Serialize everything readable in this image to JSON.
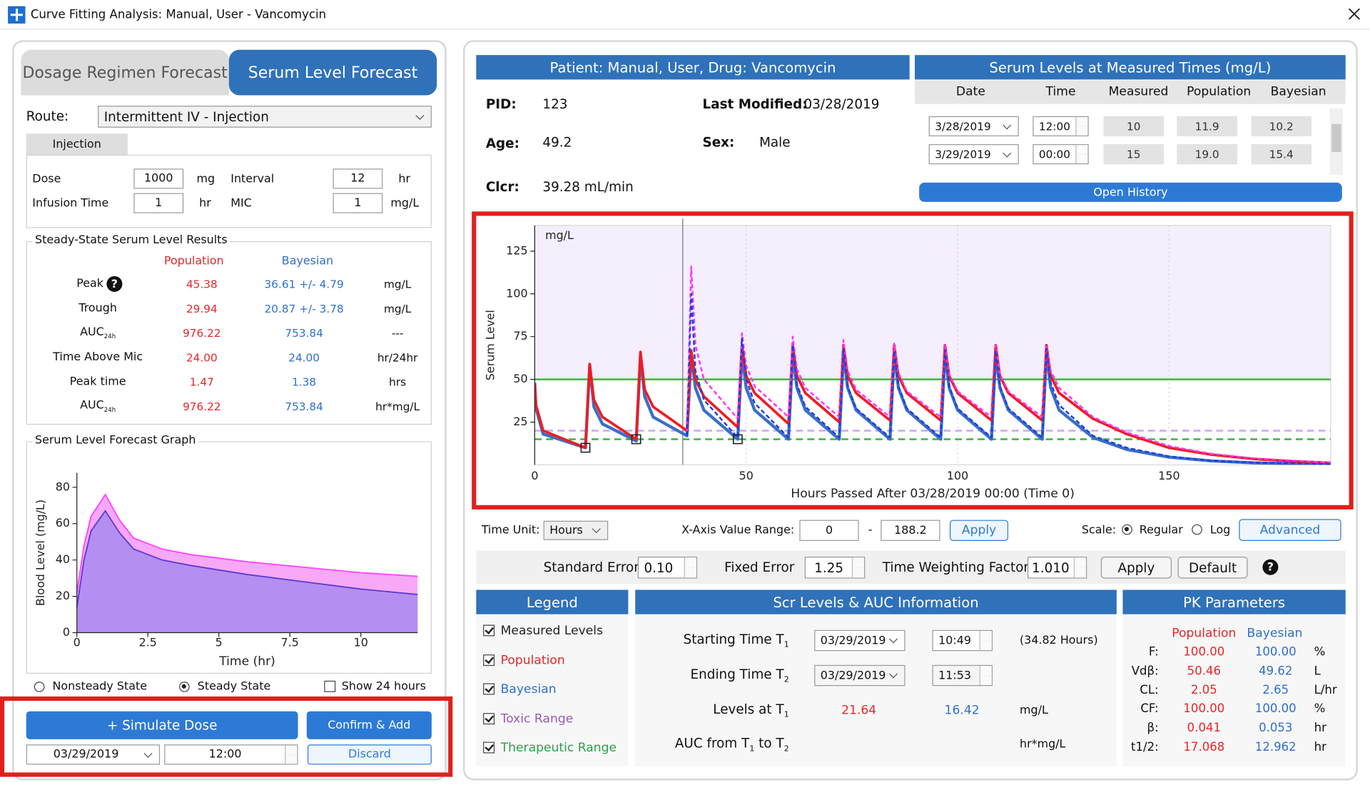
{
  "window": {
    "title": "Curve Fitting Analysis:  Manual, User - Vancomycin"
  },
  "help_icon": "?",
  "tabs": [
    "Dosage Regimen Forecast",
    "Serum Level Forecast"
  ],
  "route": {
    "label": "Route:",
    "value": "Intermittent IV - Injection"
  },
  "injection": {
    "tab": "Injection",
    "dose_label": "Dose",
    "dose": "1000",
    "dose_unit": "mg",
    "interval_label": "Interval",
    "interval": "12",
    "interval_unit": "hr",
    "infusion_label": "Infusion Time",
    "infusion": "1",
    "infusion_unit": "hr",
    "mic_label": "MIC",
    "mic": "1",
    "mic_unit": "mg/L"
  },
  "steady_state": {
    "title": "Steady-State Serum Level Results",
    "columns": [
      "Population",
      "Bayesian"
    ],
    "rows": [
      {
        "label": "Peak",
        "population": "45.38",
        "bayesian": "36.61 +/- 4.79",
        "unit": "mg/L"
      },
      {
        "label": "Trough",
        "population": "29.94",
        "bayesian": "20.87 +/- 3.78",
        "unit": "mg/L"
      },
      {
        "label": "AUC",
        "sub": "24h",
        "population": "976.22",
        "bayesian": "753.84",
        "unit": "---"
      },
      {
        "label": "Time Above Mic",
        "population": "24.00",
        "bayesian": "24.00",
        "unit": "hr/24hr"
      },
      {
        "label": "Peak time",
        "population": "1.47",
        "bayesian": "1.38",
        "unit": "hrs"
      },
      {
        "label": "AUC",
        "sub": "24h",
        "population": "976.22",
        "bayesian": "753.84",
        "unit": "hr*mg/L"
      }
    ]
  },
  "state_options": {
    "nonsteady": "Nonsteady State",
    "steady": "Steady State",
    "show24": "Show 24 hours",
    "selected": "steady",
    "show24_checked": false
  },
  "simulate": {
    "button": "+ Simulate Dose",
    "confirm": "Confirm & Add",
    "discard": "Discard",
    "date": "03/29/2019",
    "time": "12:00"
  },
  "patient": {
    "header": "Patient:  Manual, User, Drug: Vancomycin",
    "pid_label": "PID:",
    "pid": "123",
    "last_modified_label": "Last Modified:",
    "last_modified": "03/28/2019",
    "age_label": "Age:",
    "age": "49.2",
    "sex_label": "Sex:",
    "sex": "Male",
    "clcr_label": "Clcr:",
    "clcr": "39.28 mL/min"
  },
  "serum_levels": {
    "title": "Serum Levels at Measured Times (mg/L)",
    "columns": [
      "Date",
      "Time",
      "Measured",
      "Population",
      "Bayesian"
    ],
    "rows": [
      [
        "3/28/2019",
        "12:00",
        "10",
        "11.9",
        "10.2"
      ],
      [
        "3/29/2019",
        "00:00",
        "15",
        "19.0",
        "15.4"
      ]
    ],
    "button": "Open History"
  },
  "plot_controls": {
    "time_unit_label": "Time Unit:",
    "time_unit": "Hours",
    "range_label": "X-Axis Value Range:",
    "range_from": "0",
    "range_separator": "-",
    "range_to": "188.2",
    "apply": "Apply",
    "scale_label": "Scale:",
    "scale_options": [
      "Regular",
      "Log"
    ],
    "scale_selected": 0,
    "advanced": "Advanced"
  },
  "fit_settings": {
    "standard_error_label": "Standard Error",
    "standard_error": "0.10",
    "fixed_error_label": "Fixed Error",
    "fixed_error": "1.25",
    "twf_label": "Time Weighting Factor",
    "twf": "1.010",
    "apply": "Apply",
    "default": "Default"
  },
  "legend": {
    "title": "Legend",
    "items": [
      {
        "label": "Measured Levels",
        "color": "#222222",
        "checked": true
      },
      {
        "label": "Population",
        "color": "#e8262a",
        "checked": true
      },
      {
        "label": "Bayesian",
        "color": "#2f6fce",
        "checked": true
      },
      {
        "label": "Toxic Range",
        "color": "#9b59b6",
        "checked": true
      },
      {
        "label": "Therapeutic Range",
        "color": "#2e9e4a",
        "checked": true
      }
    ]
  },
  "scr_auc": {
    "title": "Scr Levels & AUC Information",
    "start_label": "Starting Time T",
    "start_sub": "1",
    "start_date": "03/29/2019",
    "start_time": "10:49",
    "start_hours": "(34.82 Hours)",
    "end_label": "Ending Time T",
    "end_sub": "2",
    "end_date": "03/29/2019",
    "end_time": "11:53",
    "levels_label": "Levels at T",
    "levels_sub": "1",
    "levels_population": "21.64",
    "levels_bayesian": "16.42",
    "levels_unit": "mg/L",
    "auc_label_parts": [
      "AUC from T",
      "1",
      " to T",
      "2"
    ],
    "auc_unit": "hr*mg/L"
  },
  "pk": {
    "title": "PK Parameters",
    "columns": [
      "Population",
      "Bayesian"
    ],
    "rows": [
      {
        "label": "F:",
        "population": "100.00",
        "bayesian": "100.00",
        "unit": "%"
      },
      {
        "label": "Vdβ:",
        "population": "50.46",
        "bayesian": "49.62",
        "unit": "L"
      },
      {
        "label": "CL:",
        "population": "2.05",
        "bayesian": "2.65",
        "unit": "L/hr"
      },
      {
        "label": "CF:",
        "population": "100.00",
        "bayesian": "100.00",
        "unit": "%"
      },
      {
        "label": "β:",
        "population": "0.041",
        "bayesian": "0.053",
        "unit": "hr"
      },
      {
        "label": "t1/2:",
        "population": "17.068",
        "bayesian": "12.962",
        "unit": "hr"
      }
    ]
  },
  "chart_data": [
    {
      "type": "area",
      "title": "Serum Level Forecast Graph",
      "x_label": "Time (hr)",
      "y_label": "Blood Level (mg/L)",
      "xlim": [
        0,
        12
      ],
      "ylim": [
        0,
        88
      ],
      "xticks": [
        0,
        2.5,
        5,
        7.5,
        10
      ],
      "yticks": [
        0,
        20,
        40,
        60,
        80
      ],
      "x": [
        0,
        0.25,
        0.5,
        1,
        1.5,
        2,
        3,
        4,
        6,
        8,
        10,
        12
      ],
      "series": [
        {
          "color": "#ff44ff",
          "fill": "#f7a8f7",
          "values": [
            22,
            48,
            64,
            76,
            62,
            52,
            46,
            43,
            39,
            36,
            33,
            31
          ]
        },
        {
          "color": "#5b3bd0",
          "fill": "#b58ef2",
          "values": [
            14,
            40,
            56,
            67,
            55,
            46,
            40,
            37,
            32,
            28,
            24,
            21
          ]
        }
      ]
    },
    {
      "type": "line",
      "x_label": "Hours Passed After 03/28/2019 00:00 (Time 0)",
      "y_label": "Serum Level",
      "unit_label": "mg/L",
      "xlim": [
        0,
        188.2
      ],
      "ylim": [
        0,
        140
      ],
      "xticks": [
        0,
        50,
        100,
        150
      ],
      "yticks": [
        25,
        50,
        75,
        100,
        125
      ],
      "grid": "x",
      "current_time": 35,
      "bands": [
        {
          "from": 50,
          "to": 140,
          "color": "#f5eefd"
        }
      ],
      "ref_lines": [
        {
          "value": 50,
          "color": "#3cb43c",
          "dash": false
        },
        {
          "value": 20,
          "color": "#c9a6f0",
          "dash": true
        },
        {
          "value": 15,
          "color": "#3cb43c",
          "dash": true
        }
      ],
      "series": [
        {
          "color": "#3a6fc8",
          "width": 3.5,
          "dash": false,
          "x": [
            0,
            0.3,
            2,
            12,
            13,
            14,
            16,
            24,
            25,
            26,
            28,
            36,
            37,
            38,
            40,
            48,
            49,
            50,
            52,
            60,
            61,
            62,
            64,
            72,
            73,
            74,
            76,
            84,
            85,
            86,
            88,
            96,
            97,
            98,
            100,
            108,
            109,
            110,
            112,
            120,
            121,
            122,
            124,
            132,
            140,
            150,
            160,
            170,
            180,
            188.2
          ],
          "values": [
            48,
            33,
            18,
            10,
            58,
            34,
            24,
            14,
            64,
            40,
            28,
            17,
            65,
            45,
            32,
            15,
            65,
            45,
            32,
            15,
            65,
            45,
            32,
            15,
            65,
            45,
            32,
            15,
            65,
            45,
            32,
            15,
            65,
            45,
            32,
            15,
            65,
            45,
            32,
            15,
            66,
            45,
            32,
            16,
            9,
            4.5,
            2.3,
            1.2,
            0.7,
            0.4
          ]
        },
        {
          "color": "#ee1c24",
          "width": 3,
          "dash": false,
          "x": [
            0,
            0.3,
            2,
            12,
            13,
            14,
            16,
            24,
            25,
            26,
            28,
            36,
            37,
            38,
            40,
            48,
            49,
            50,
            52,
            60,
            61,
            62,
            64,
            72,
            73,
            74,
            76,
            84,
            85,
            86,
            88,
            96,
            97,
            98,
            100,
            108,
            109,
            110,
            112,
            120,
            121,
            122,
            124,
            132,
            140,
            150,
            160,
            170,
            180,
            188.2
          ],
          "values": [
            48,
            35,
            20,
            10,
            59,
            38,
            28,
            15,
            66,
            44,
            34,
            20,
            67,
            50,
            40,
            22,
            70,
            52,
            42,
            24,
            70,
            52,
            42,
            25,
            70,
            52,
            42,
            26,
            70,
            52,
            42,
            26,
            70,
            52,
            42,
            26,
            70,
            52,
            42,
            26,
            70,
            52,
            42,
            27,
            18,
            10,
            6,
            3.5,
            2,
            1.2
          ]
        },
        {
          "color": "#ff33ff",
          "width": 2,
          "dash": true,
          "x": [
            36,
            37,
            38,
            40,
            48,
            49,
            50,
            52,
            60,
            61,
            62,
            64,
            72,
            73,
            74,
            76,
            84,
            85,
            86,
            88,
            96,
            97,
            98,
            100,
            108,
            109,
            110,
            112,
            120,
            121,
            122,
            124,
            132,
            140,
            150,
            160,
            170,
            188.2
          ],
          "values": [
            20,
            116,
            70,
            50,
            27,
            77,
            58,
            46,
            28,
            75,
            56,
            45,
            28,
            73,
            55,
            44,
            28,
            71,
            54,
            43,
            28,
            70,
            53,
            43,
            28,
            70,
            53,
            43,
            28,
            70,
            55,
            45,
            28,
            19,
            11,
            6.5,
            3.8,
            1.3
          ]
        },
        {
          "color": "#1f3fe0",
          "width": 2,
          "dash": true,
          "x": [
            36,
            37,
            38,
            40,
            48,
            49,
            50,
            52,
            60,
            61,
            62,
            64,
            72,
            73,
            74,
            76,
            84,
            85,
            86,
            88,
            96,
            97,
            98,
            100,
            108,
            109,
            110,
            112,
            120,
            121,
            122,
            124,
            132,
            140,
            150,
            160,
            170,
            188.2
          ],
          "values": [
            17,
            100,
            55,
            38,
            16,
            74,
            50,
            36,
            16,
            70,
            47,
            34,
            16,
            68,
            46,
            33,
            16,
            67,
            46,
            33,
            16,
            67,
            46,
            33,
            16,
            67,
            46,
            33,
            16,
            68,
            48,
            35,
            17,
            10,
            5,
            2.5,
            1.3,
            0.5
          ]
        }
      ],
      "measured": {
        "x": [
          12,
          24,
          48
        ],
        "values": [
          10,
          15,
          15
        ]
      }
    }
  ]
}
